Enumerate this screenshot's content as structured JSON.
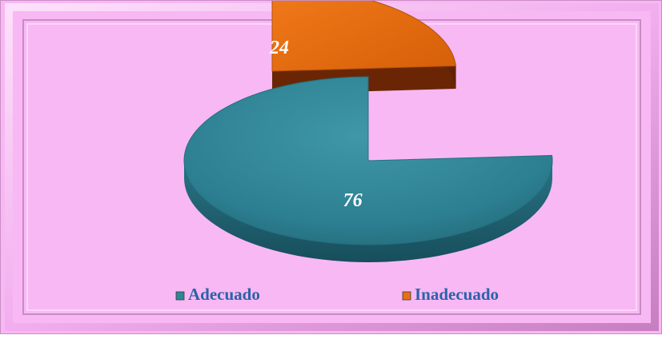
{
  "chart_data": {
    "type": "pie",
    "title": "",
    "categories": [
      "Adecuado",
      "Inadecuado"
    ],
    "values": [
      76,
      24
    ],
    "colors": {
      "Adecuado": "#2f8596",
      "Inadecuado": "#e86f12"
    },
    "exploded": "Inadecuado",
    "style": "3d",
    "legend": {
      "placement": "bottom",
      "items": [
        {
          "label": "Adecuado",
          "color": "#2f8596"
        },
        {
          "label": "Inadecuado",
          "color": "#e86f12"
        }
      ]
    },
    "background": "#f8b8f4",
    "label_color": "#ffffff",
    "legend_text_color": "#2b63a8"
  }
}
